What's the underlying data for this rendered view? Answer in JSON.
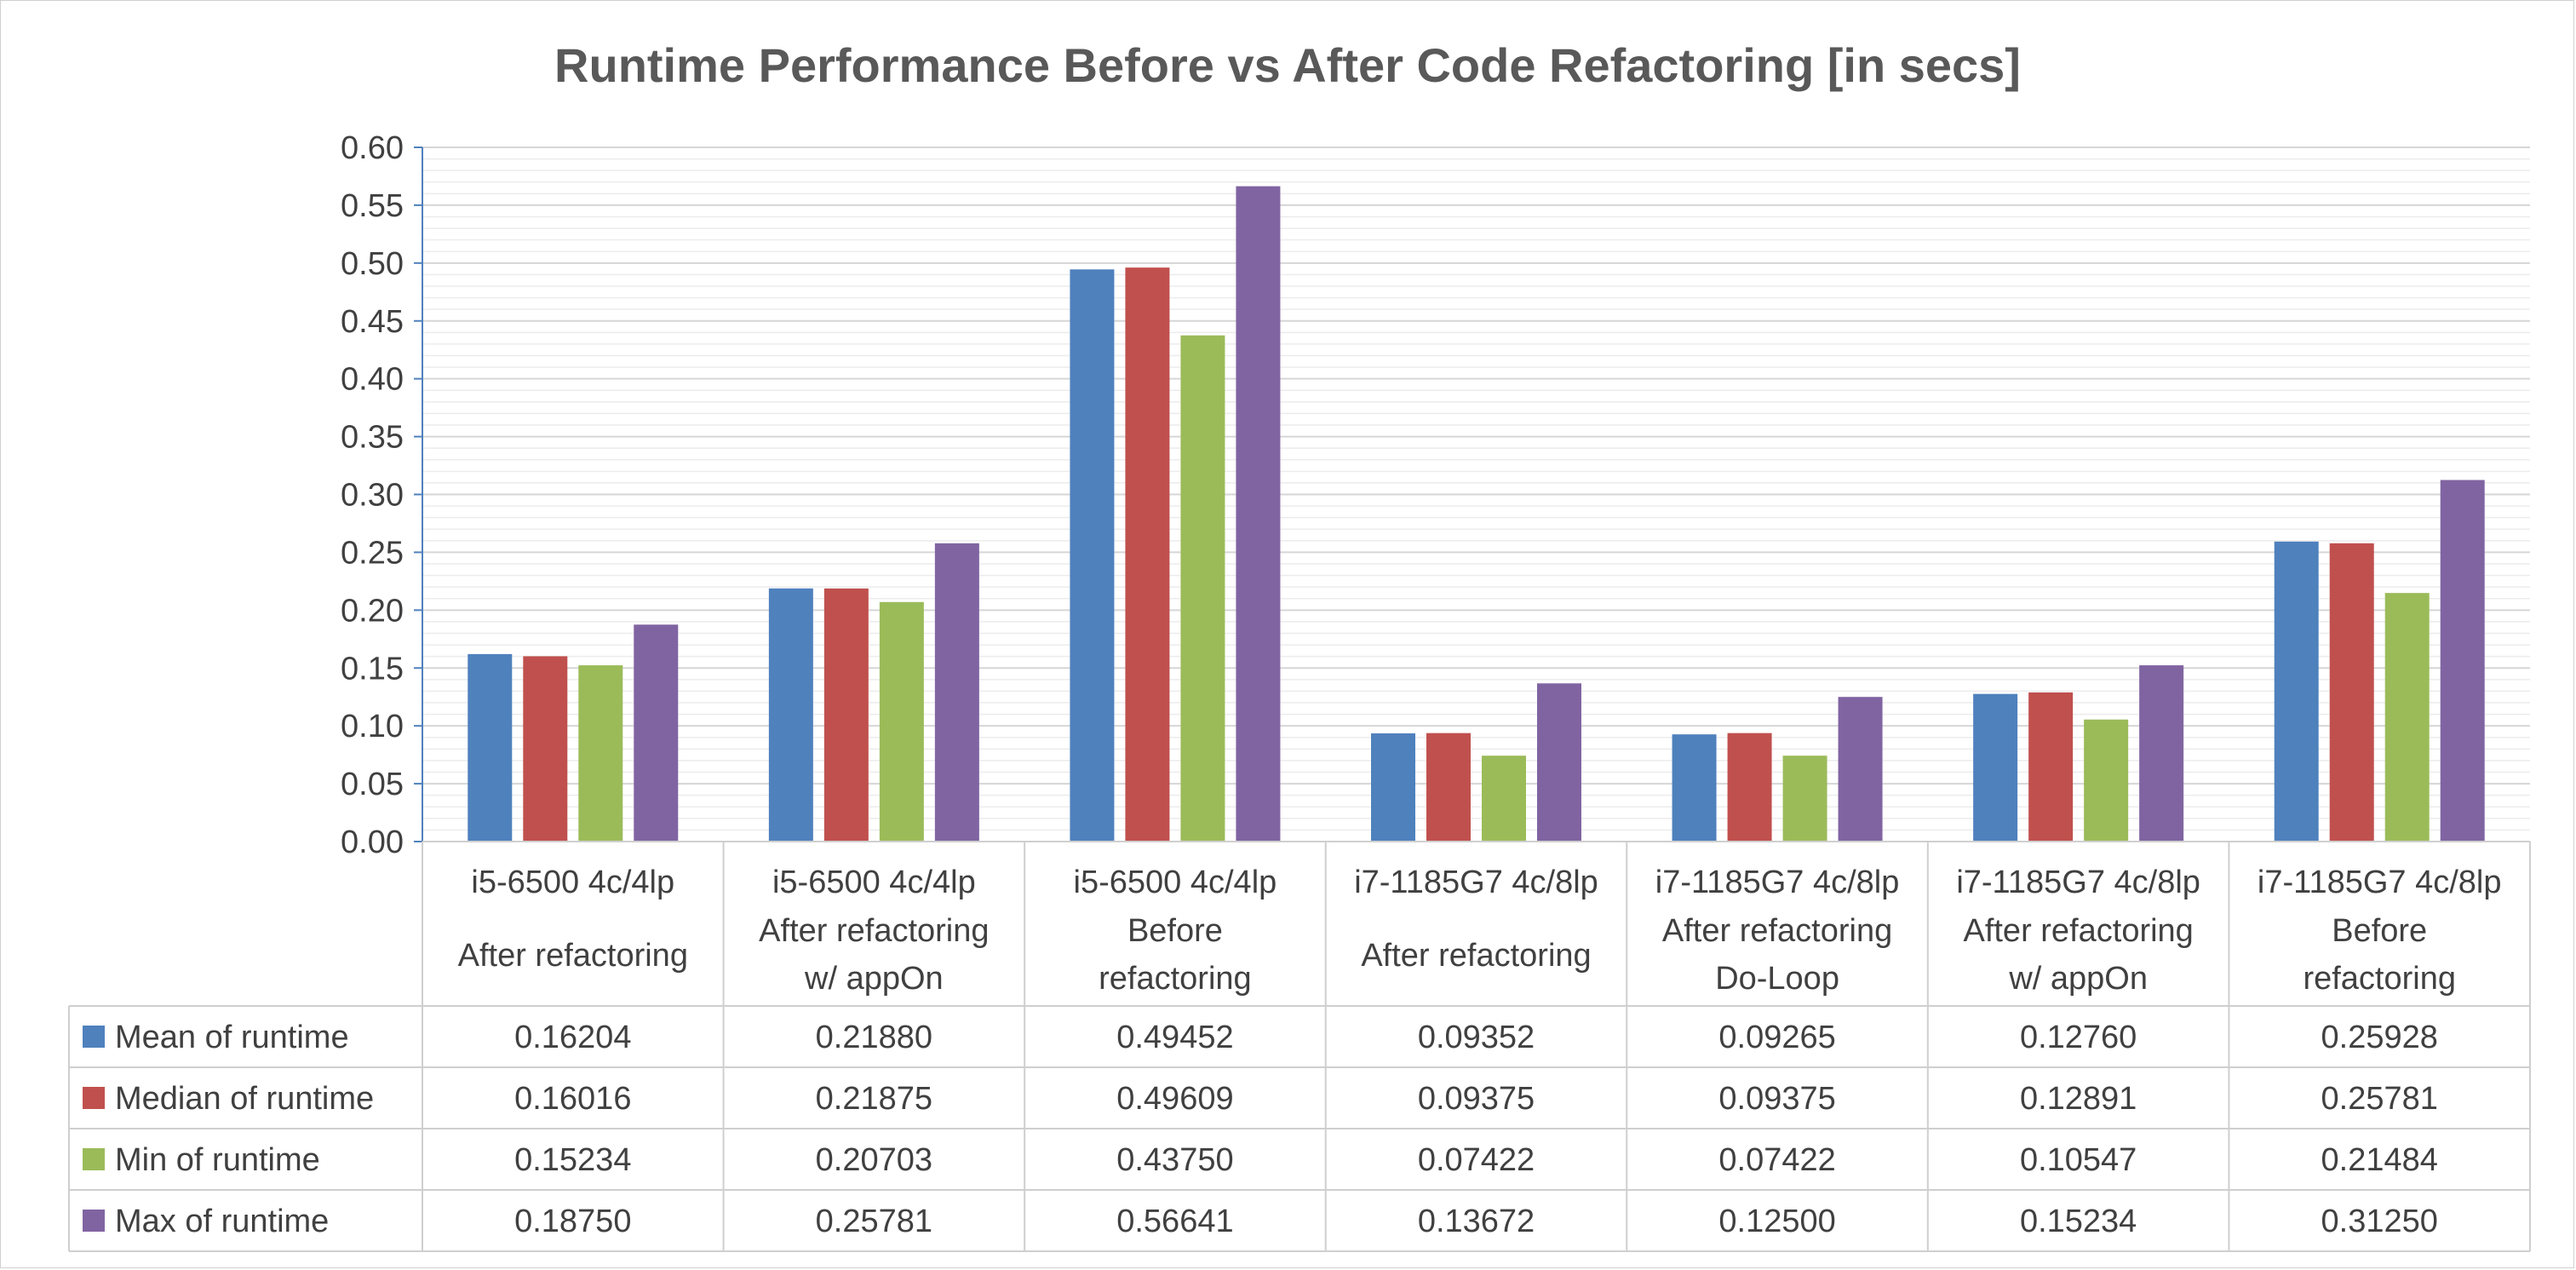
{
  "chart_data": {
    "type": "bar",
    "title": "Runtime Performance Before vs After Code Refactoring [in secs]",
    "xlabel": "",
    "ylabel": "",
    "ylim": [
      0,
      0.6
    ],
    "yticks": [
      "0.00",
      "0.05",
      "0.10",
      "0.15",
      "0.20",
      "0.25",
      "0.30",
      "0.35",
      "0.40",
      "0.45",
      "0.50",
      "0.55",
      "0.60"
    ],
    "grid": true,
    "legend": "data-table",
    "categories": [
      {
        "line1": "i5-6500 4c/4lp",
        "line2": "After refactoring",
        "line3": ""
      },
      {
        "line1": "i5-6500 4c/4lp",
        "line2": "After refactoring",
        "line3": "w/ appOn"
      },
      {
        "line1": "i5-6500 4c/4lp",
        "line2": "Before",
        "line3": "refactoring"
      },
      {
        "line1": "i7-1185G7 4c/8lp",
        "line2": "After refactoring",
        "line3": ""
      },
      {
        "line1": "i7-1185G7 4c/8lp",
        "line2": "After refactoring",
        "line3": "Do-Loop"
      },
      {
        "line1": "i7-1185G7 4c/8lp",
        "line2": "After refactoring",
        "line3": "w/ appOn"
      },
      {
        "line1": "i7-1185G7 4c/8lp",
        "line2": "Before",
        "line3": "refactoring"
      }
    ],
    "series": [
      {
        "name": "Mean of runtime",
        "color": "#4f81bd",
        "values": [
          0.16204,
          0.2188,
          0.49452,
          0.09352,
          0.09265,
          0.1276,
          0.25928
        ],
        "labels": [
          "0.16204",
          "0.21880",
          "0.49452",
          "0.09352",
          "0.09265",
          "0.12760",
          "0.25928"
        ]
      },
      {
        "name": "Median of runtime",
        "color": "#c0504d",
        "values": [
          0.16016,
          0.21875,
          0.49609,
          0.09375,
          0.09375,
          0.12891,
          0.25781
        ],
        "labels": [
          "0.16016",
          "0.21875",
          "0.49609",
          "0.09375",
          "0.09375",
          "0.12891",
          "0.25781"
        ]
      },
      {
        "name": "Min of runtime",
        "color": "#9bbb59",
        "values": [
          0.15234,
          0.20703,
          0.4375,
          0.07422,
          0.07422,
          0.10547,
          0.21484
        ],
        "labels": [
          "0.15234",
          "0.20703",
          "0.43750",
          "0.07422",
          "0.07422",
          "0.10547",
          "0.21484"
        ]
      },
      {
        "name": "Max of runtime",
        "color": "#8064a2",
        "values": [
          0.1875,
          0.25781,
          0.56641,
          0.13672,
          0.125,
          0.15234,
          0.3125
        ],
        "labels": [
          "0.18750",
          "0.25781",
          "0.56641",
          "0.13672",
          "0.12500",
          "0.15234",
          "0.31250"
        ]
      }
    ]
  }
}
